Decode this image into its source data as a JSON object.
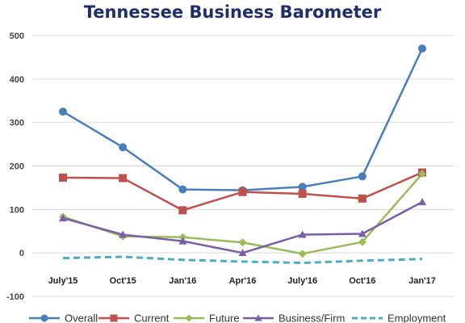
{
  "chart_data": {
    "type": "line",
    "title": "Tennessee Business Barometer",
    "categories": [
      "July'15",
      "Oct'15",
      "Jan'16",
      "Apr'16",
      "July'16",
      "Oct'16",
      "Jan'17"
    ],
    "ylim": [
      -100,
      500
    ],
    "yticks": [
      500,
      400,
      300,
      200,
      100,
      0,
      -100
    ],
    "grid": true,
    "legend_position": "bottom",
    "series": [
      {
        "name": "Overall",
        "color": "#4a7ebb",
        "marker": "circle",
        "dashed": false,
        "values": [
          325,
          243,
          146,
          144,
          152,
          176,
          470
        ]
      },
      {
        "name": "Current",
        "color": "#c0504d",
        "marker": "square",
        "dashed": false,
        "values": [
          173,
          172,
          98,
          140,
          136,
          125,
          185
        ]
      },
      {
        "name": "Future",
        "color": "#9bbb59",
        "marker": "diamond",
        "dashed": false,
        "values": [
          83,
          38,
          36,
          24,
          -2,
          25,
          182
        ]
      },
      {
        "name": "Business/Firm",
        "color": "#7b5ea7",
        "marker": "triangle",
        "dashed": false,
        "values": [
          80,
          42,
          27,
          0,
          42,
          44,
          117
        ]
      },
      {
        "name": "Employment",
        "color": "#4bacc6",
        "marker": "none",
        "dashed": true,
        "values": [
          -12,
          -9,
          -16,
          -20,
          -23,
          -18,
          -14
        ]
      }
    ]
  }
}
